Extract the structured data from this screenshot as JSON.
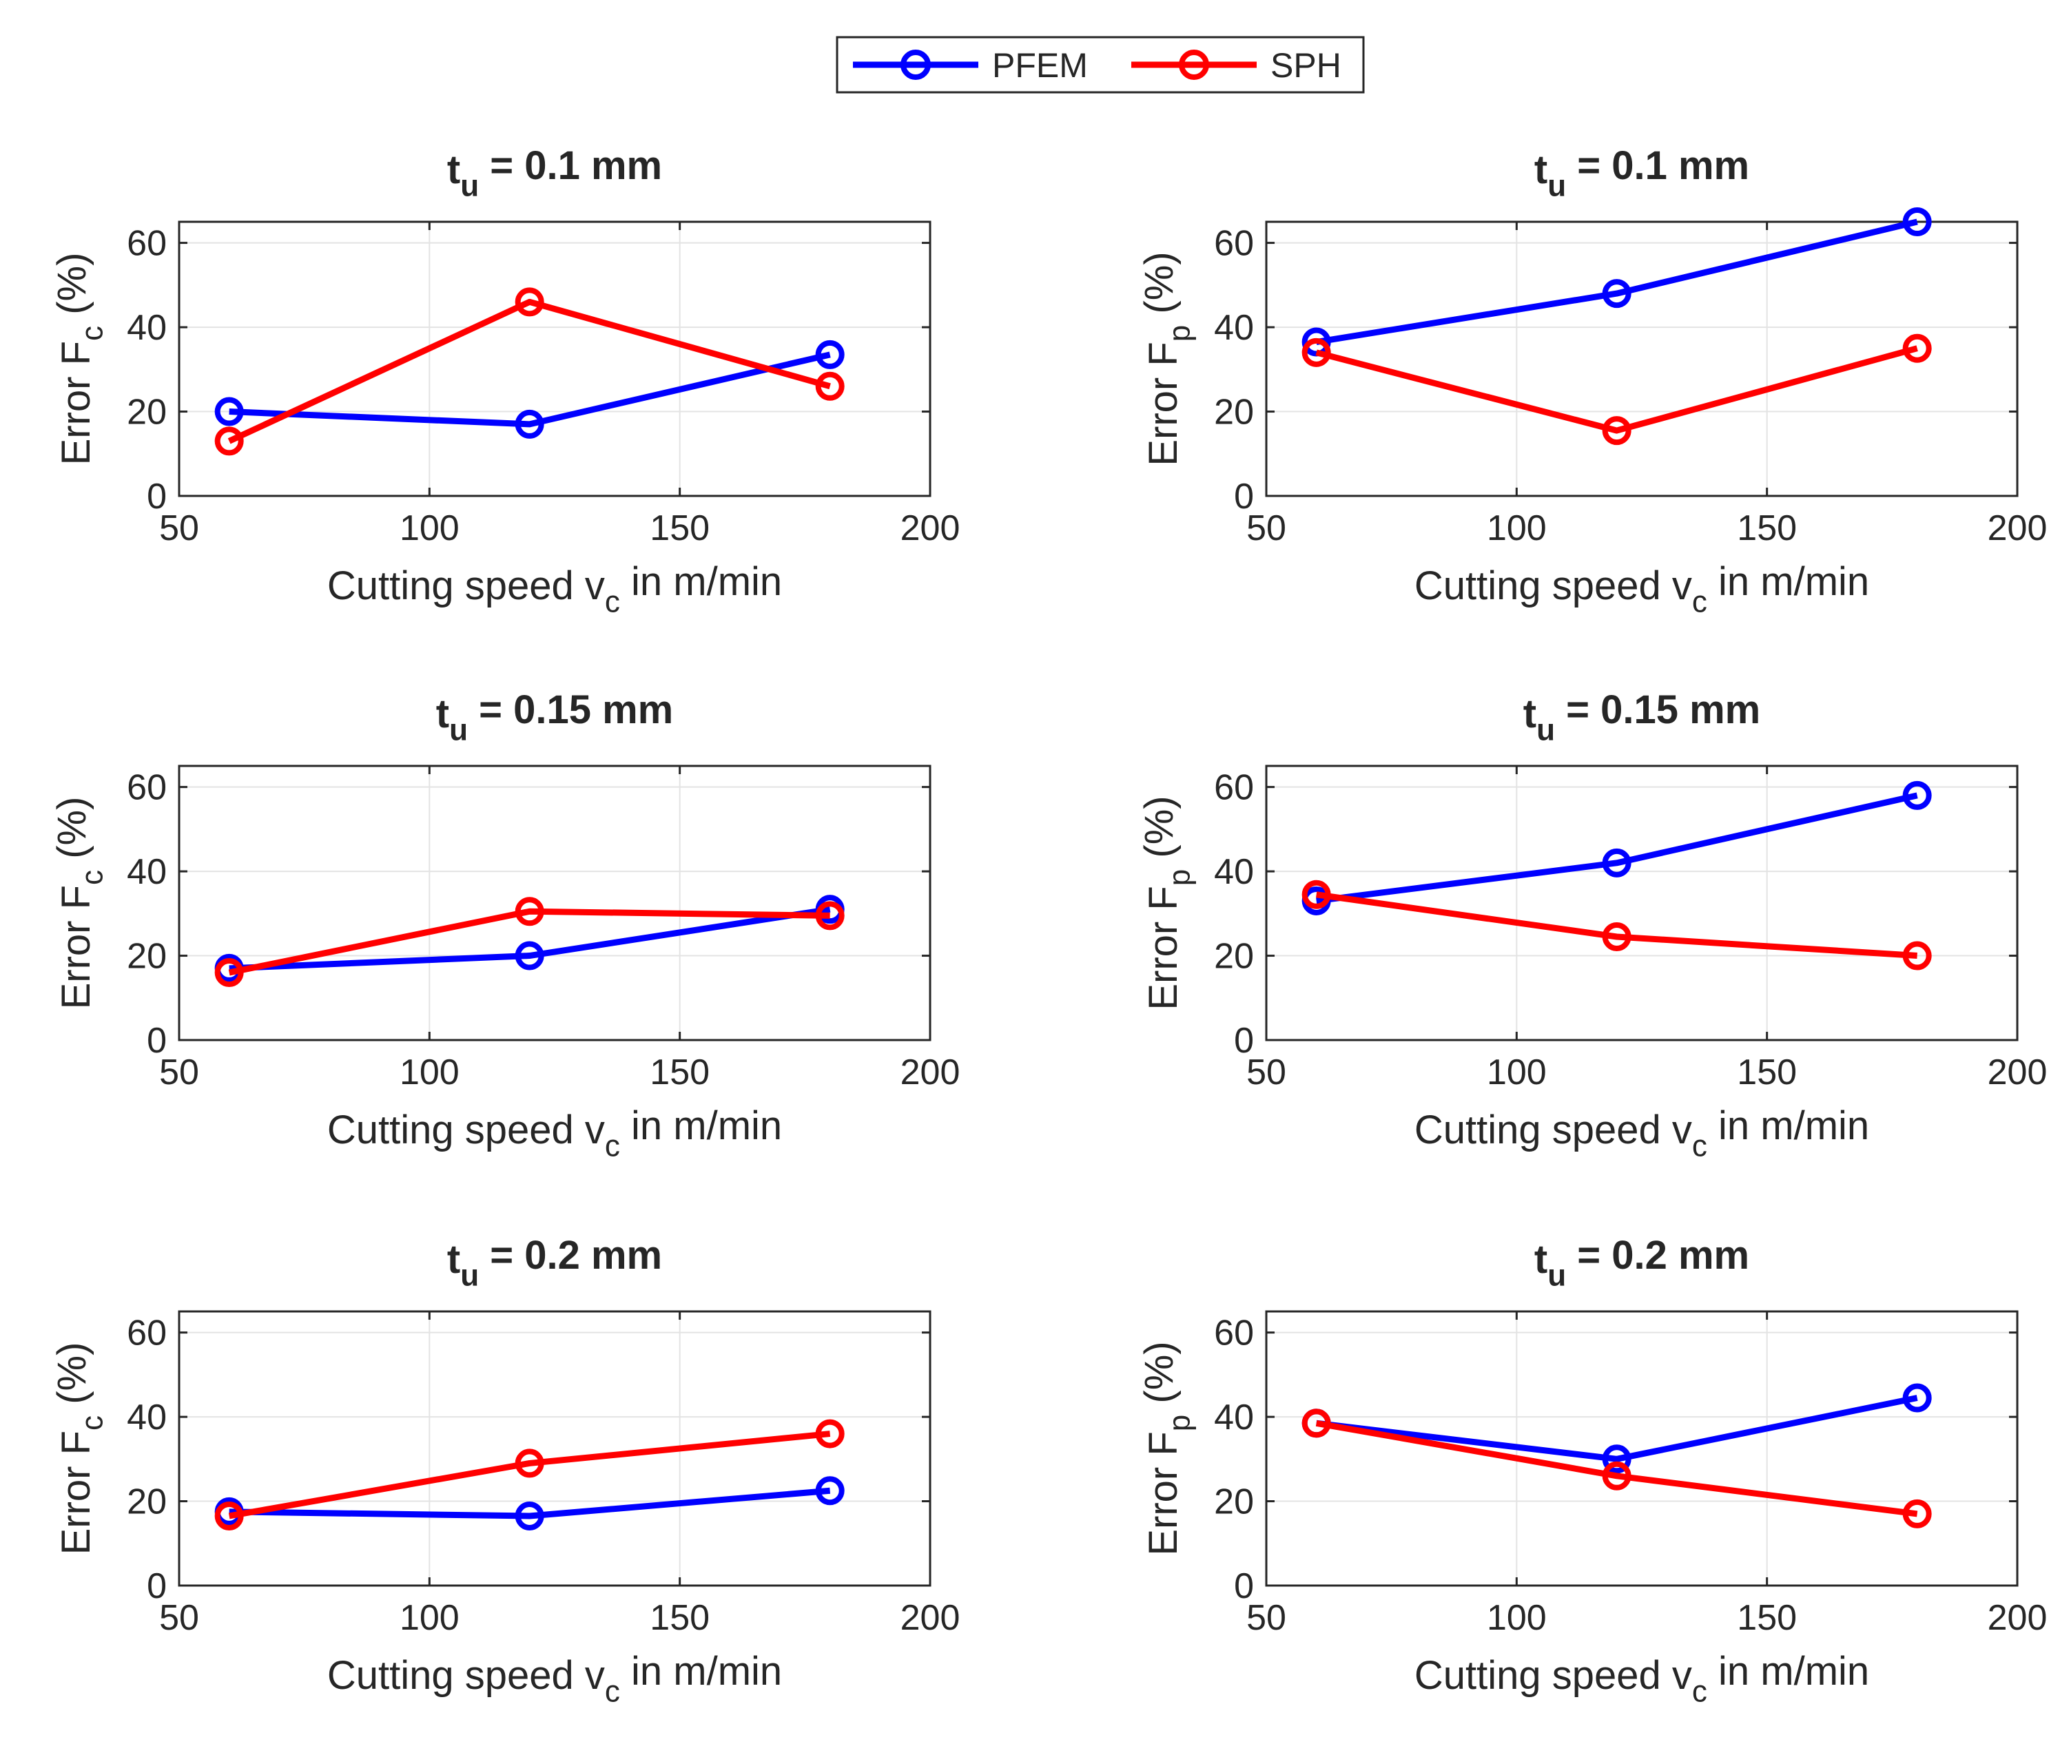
{
  "legend": {
    "entries": [
      {
        "name": "PFEM",
        "color": "#0000ff"
      },
      {
        "name": "SPH",
        "color": "#ff0000"
      }
    ]
  },
  "chart_data": [
    {
      "type": "line",
      "title": {
        "main": "t",
        "sub": "u",
        "rest": " = 0.1 mm"
      },
      "xlabel": {
        "main": "Cutting speed v",
        "sub": "c",
        "rest": " in m/min"
      },
      "ylabel": {
        "main": "Error F",
        "sub": "c",
        "rest": " (%)"
      },
      "xlim": [
        50,
        200
      ],
      "ylim": [
        0,
        65
      ],
      "xticks": [
        50,
        100,
        150,
        200
      ],
      "yticks": [
        0,
        20,
        40,
        60
      ],
      "grid": true,
      "x": [
        60,
        120,
        180
      ],
      "series": [
        {
          "name": "PFEM",
          "values": [
            20,
            17,
            33.5
          ]
        },
        {
          "name": "SPH",
          "values": [
            13,
            46,
            26
          ]
        }
      ]
    },
    {
      "type": "line",
      "title": {
        "main": "t",
        "sub": "u",
        "rest": " = 0.1 mm"
      },
      "xlabel": {
        "main": "Cutting speed v",
        "sub": "c",
        "rest": " in m/min"
      },
      "ylabel": {
        "main": "Error F",
        "sub": "p",
        "rest": " (%)"
      },
      "xlim": [
        50,
        200
      ],
      "ylim": [
        0,
        65
      ],
      "xticks": [
        50,
        100,
        150,
        200
      ],
      "yticks": [
        0,
        20,
        40,
        60
      ],
      "grid": true,
      "x": [
        60,
        120,
        180
      ],
      "series": [
        {
          "name": "PFEM",
          "values": [
            36.5,
            48,
            65
          ]
        },
        {
          "name": "SPH",
          "values": [
            34,
            15.5,
            35
          ]
        }
      ]
    },
    {
      "type": "line",
      "title": {
        "main": "t",
        "sub": "u",
        "rest": " = 0.15 mm"
      },
      "xlabel": {
        "main": "Cutting speed v",
        "sub": "c",
        "rest": " in m/min"
      },
      "ylabel": {
        "main": "Error F",
        "sub": "c",
        "rest": " (%)"
      },
      "xlim": [
        50,
        200
      ],
      "ylim": [
        0,
        65
      ],
      "xticks": [
        50,
        100,
        150,
        200
      ],
      "yticks": [
        0,
        20,
        40,
        60
      ],
      "grid": true,
      "x": [
        60,
        120,
        180
      ],
      "series": [
        {
          "name": "PFEM",
          "values": [
            17,
            20,
            31
          ]
        },
        {
          "name": "SPH",
          "values": [
            16,
            30.5,
            29.5
          ]
        }
      ]
    },
    {
      "type": "line",
      "title": {
        "main": "t",
        "sub": "u",
        "rest": " = 0.15 mm"
      },
      "xlabel": {
        "main": "Cutting speed v",
        "sub": "c",
        "rest": " in m/min"
      },
      "ylabel": {
        "main": "Error F",
        "sub": "p",
        "rest": " (%)"
      },
      "xlim": [
        50,
        200
      ],
      "ylim": [
        0,
        65
      ],
      "xticks": [
        50,
        100,
        150,
        200
      ],
      "yticks": [
        0,
        20,
        40,
        60
      ],
      "grid": true,
      "x": [
        60,
        120,
        180
      ],
      "series": [
        {
          "name": "PFEM",
          "values": [
            33,
            42,
            58
          ]
        },
        {
          "name": "SPH",
          "values": [
            34.5,
            24.5,
            20
          ]
        }
      ]
    },
    {
      "type": "line",
      "title": {
        "main": "t",
        "sub": "u",
        "rest": " = 0.2 mm"
      },
      "xlabel": {
        "main": "Cutting speed v",
        "sub": "c",
        "rest": " in m/min"
      },
      "ylabel": {
        "main": "Error F",
        "sub": "c",
        "rest": " (%)"
      },
      "xlim": [
        50,
        200
      ],
      "ylim": [
        0,
        65
      ],
      "xticks": [
        50,
        100,
        150,
        200
      ],
      "yticks": [
        0,
        20,
        40,
        60
      ],
      "grid": true,
      "x": [
        60,
        120,
        180
      ],
      "series": [
        {
          "name": "PFEM",
          "values": [
            17.5,
            16.5,
            22.5
          ]
        },
        {
          "name": "SPH",
          "values": [
            16.5,
            29,
            36
          ]
        }
      ]
    },
    {
      "type": "line",
      "title": {
        "main": "t",
        "sub": "u",
        "rest": " = 0.2 mm"
      },
      "xlabel": {
        "main": "Cutting speed v",
        "sub": "c",
        "rest": " in m/min"
      },
      "ylabel": {
        "main": "Error F",
        "sub": "p",
        "rest": " (%)"
      },
      "xlim": [
        50,
        200
      ],
      "ylim": [
        0,
        65
      ],
      "xticks": [
        50,
        100,
        150,
        200
      ],
      "yticks": [
        0,
        20,
        40,
        60
      ],
      "grid": true,
      "x": [
        60,
        120,
        180
      ],
      "series": [
        {
          "name": "PFEM",
          "values": [
            38.5,
            30,
            44.5
          ]
        },
        {
          "name": "SPH",
          "values": [
            38.5,
            26,
            17
          ]
        }
      ]
    }
  ]
}
